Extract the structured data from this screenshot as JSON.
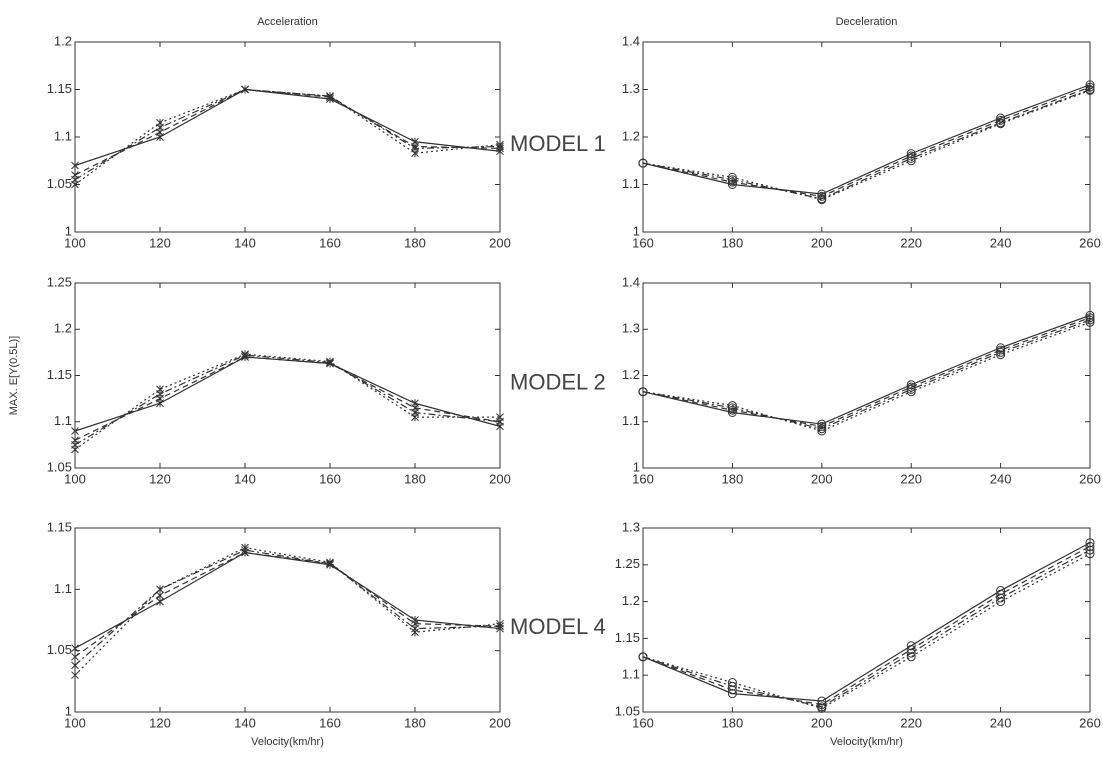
{
  "chart_data": [
    {
      "type": "line",
      "title": "Acceleration",
      "annotation": "MODEL 1",
      "x": [
        100,
        120,
        140,
        160,
        180,
        200
      ],
      "xlim": [
        100,
        200
      ],
      "xticks": [
        100,
        120,
        140,
        160,
        180,
        200
      ],
      "ylim": [
        1,
        1.2
      ],
      "yticks": [
        1,
        1.05,
        1.1,
        1.15,
        1.2
      ],
      "marker": "x",
      "series": [
        {
          "color": "#333333",
          "dash": "solid",
          "values": [
            1.07,
            1.1,
            1.15,
            1.14,
            1.095,
            1.085
          ]
        },
        {
          "color": "#333333",
          "dash": "dashed",
          "values": [
            1.06,
            1.105,
            1.15,
            1.142,
            1.09,
            1.088
          ]
        },
        {
          "color": "#333333",
          "dash": "dashdot",
          "values": [
            1.055,
            1.11,
            1.15,
            1.143,
            1.088,
            1.09
          ]
        },
        {
          "color": "#333333",
          "dash": "dotted",
          "values": [
            1.05,
            1.115,
            1.15,
            1.143,
            1.083,
            1.092
          ]
        }
      ]
    },
    {
      "type": "line",
      "title": "Deceleration",
      "x": [
        160,
        180,
        200,
        220,
        240,
        260
      ],
      "xlim": [
        160,
        260
      ],
      "xticks": [
        160,
        180,
        200,
        220,
        240,
        260
      ],
      "ylim": [
        1,
        1.4
      ],
      "yticks": [
        1,
        1.1,
        1.2,
        1.3,
        1.4
      ],
      "marker": "o",
      "series": [
        {
          "color": "#333333",
          "dash": "solid",
          "values": [
            1.145,
            1.1,
            1.08,
            1.165,
            1.24,
            1.31
          ]
        },
        {
          "color": "#333333",
          "dash": "dashed",
          "values": [
            1.145,
            1.105,
            1.075,
            1.16,
            1.235,
            1.305
          ]
        },
        {
          "color": "#333333",
          "dash": "dashdot",
          "values": [
            1.145,
            1.11,
            1.07,
            1.155,
            1.23,
            1.3
          ]
        },
        {
          "color": "#333333",
          "dash": "dotted",
          "values": [
            1.145,
            1.115,
            1.068,
            1.15,
            1.228,
            1.298
          ]
        }
      ]
    },
    {
      "type": "line",
      "ylabel": "MAX. E[Y(0.5L)]",
      "annotation": "MODEL 2",
      "x": [
        100,
        120,
        140,
        160,
        180,
        200
      ],
      "xlim": [
        100,
        200
      ],
      "xticks": [
        100,
        120,
        140,
        160,
        180,
        200
      ],
      "ylim": [
        1.05,
        1.25
      ],
      "yticks": [
        1.05,
        1.1,
        1.15,
        1.2,
        1.25
      ],
      "marker": "x",
      "series": [
        {
          "color": "#333333",
          "dash": "solid",
          "values": [
            1.09,
            1.12,
            1.17,
            1.163,
            1.12,
            1.095
          ]
        },
        {
          "color": "#333333",
          "dash": "dashed",
          "values": [
            1.08,
            1.125,
            1.17,
            1.163,
            1.115,
            1.1
          ]
        },
        {
          "color": "#333333",
          "dash": "dashdot",
          "values": [
            1.075,
            1.13,
            1.172,
            1.164,
            1.11,
            1.1
          ]
        },
        {
          "color": "#333333",
          "dash": "dotted",
          "values": [
            1.07,
            1.135,
            1.173,
            1.165,
            1.105,
            1.105
          ]
        }
      ]
    },
    {
      "type": "line",
      "x": [
        160,
        180,
        200,
        220,
        240,
        260
      ],
      "xlim": [
        160,
        260
      ],
      "xticks": [
        160,
        180,
        200,
        220,
        240,
        260
      ],
      "ylim": [
        1,
        1.4
      ],
      "yticks": [
        1,
        1.1,
        1.2,
        1.3,
        1.4
      ],
      "marker": "o",
      "series": [
        {
          "color": "#333333",
          "dash": "solid",
          "values": [
            1.165,
            1.12,
            1.095,
            1.18,
            1.26,
            1.33
          ]
        },
        {
          "color": "#333333",
          "dash": "dashed",
          "values": [
            1.165,
            1.125,
            1.09,
            1.175,
            1.255,
            1.325
          ]
        },
        {
          "color": "#333333",
          "dash": "dashdot",
          "values": [
            1.165,
            1.13,
            1.085,
            1.17,
            1.25,
            1.32
          ]
        },
        {
          "color": "#333333",
          "dash": "dotted",
          "values": [
            1.165,
            1.135,
            1.08,
            1.165,
            1.245,
            1.315
          ]
        }
      ]
    },
    {
      "type": "line",
      "xlabel": "Velocity(km/hr)",
      "annotation": "MODEL 4",
      "x": [
        100,
        120,
        140,
        160,
        180,
        200
      ],
      "xlim": [
        100,
        200
      ],
      "xticks": [
        100,
        120,
        140,
        160,
        180,
        200
      ],
      "ylim": [
        1,
        1.15
      ],
      "yticks": [
        1,
        1.05,
        1.1,
        1.15
      ],
      "marker": "x",
      "series": [
        {
          "color": "#333333",
          "dash": "solid",
          "values": [
            1.052,
            1.09,
            1.13,
            1.12,
            1.075,
            1.068
          ]
        },
        {
          "color": "#333333",
          "dash": "dashed",
          "values": [
            1.045,
            1.095,
            1.13,
            1.121,
            1.072,
            1.07
          ]
        },
        {
          "color": "#333333",
          "dash": "dashdot",
          "values": [
            1.038,
            1.1,
            1.132,
            1.121,
            1.068,
            1.07
          ]
        },
        {
          "color": "#333333",
          "dash": "dotted",
          "values": [
            1.03,
            1.1,
            1.134,
            1.122,
            1.065,
            1.072
          ]
        }
      ]
    },
    {
      "type": "line",
      "xlabel": "Velocity(km/hr)",
      "x": [
        160,
        180,
        200,
        220,
        240,
        260
      ],
      "xlim": [
        160,
        260
      ],
      "xticks": [
        160,
        180,
        200,
        220,
        240,
        260
      ],
      "ylim": [
        1.05,
        1.3
      ],
      "yticks": [
        1.05,
        1.1,
        1.15,
        1.2,
        1.25,
        1.3
      ],
      "marker": "o",
      "series": [
        {
          "color": "#333333",
          "dash": "solid",
          "values": [
            1.125,
            1.075,
            1.065,
            1.14,
            1.215,
            1.28
          ]
        },
        {
          "color": "#333333",
          "dash": "dashed",
          "values": [
            1.125,
            1.08,
            1.06,
            1.135,
            1.21,
            1.275
          ]
        },
        {
          "color": "#333333",
          "dash": "dashdot",
          "values": [
            1.125,
            1.085,
            1.057,
            1.13,
            1.205,
            1.27
          ]
        },
        {
          "color": "#333333",
          "dash": "dotted",
          "values": [
            1.125,
            1.09,
            1.055,
            1.125,
            1.2,
            1.265
          ]
        }
      ]
    }
  ]
}
